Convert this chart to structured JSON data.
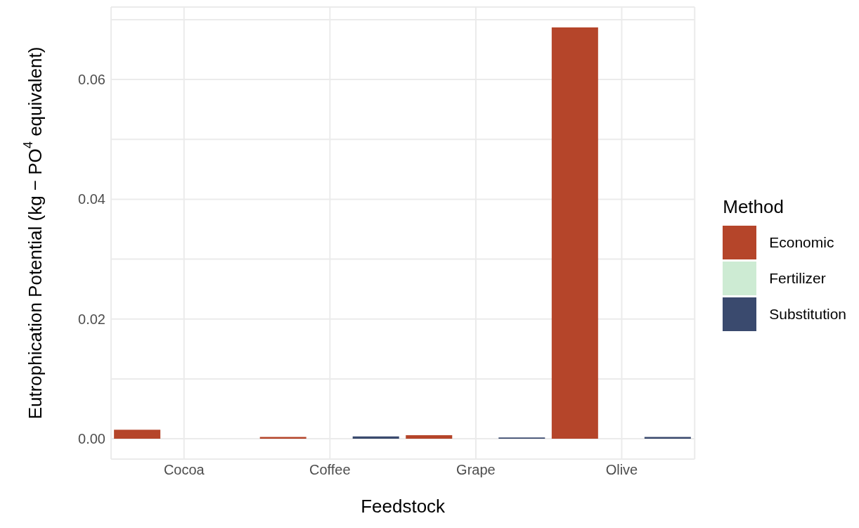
{
  "chart_data": {
    "type": "bar",
    "xlabel": "Feedstock",
    "ylabel": "Eutrophication Potential (kg − PO$^{4}$ equivalent)",
    "legend_title": "Method",
    "categories": [
      "Cocoa",
      "Coffee",
      "Grape",
      "Olive"
    ],
    "series": [
      {
        "name": "Economic",
        "color": "#b5452a",
        "values": [
          0.0015,
          0.0003,
          0.0006,
          0.0687
        ]
      },
      {
        "name": "Fertilizer",
        "color": "#cdebd3",
        "values": [
          0,
          0,
          0,
          0
        ]
      },
      {
        "name": "Substitution",
        "color": "#3a4a6e",
        "values": [
          0,
          0.0004,
          0.0002,
          0.0003
        ]
      }
    ],
    "ylim": [
      -0.0034,
      0.0721
    ],
    "yticks": [
      "0.00",
      {
        "value": 0.01,
        "label": null
      },
      {
        "value": 0.02,
        "label": "0.02"
      },
      {
        "value": 0.03,
        "label": null
      },
      {
        "value": 0.04,
        "label": "0.04"
      },
      {
        "value": 0.05,
        "label": null
      },
      {
        "value": 0.06,
        "label": "0.06"
      },
      {
        "value": 0.07,
        "label": null
      }
    ],
    "grid": true,
    "legend": "right"
  }
}
